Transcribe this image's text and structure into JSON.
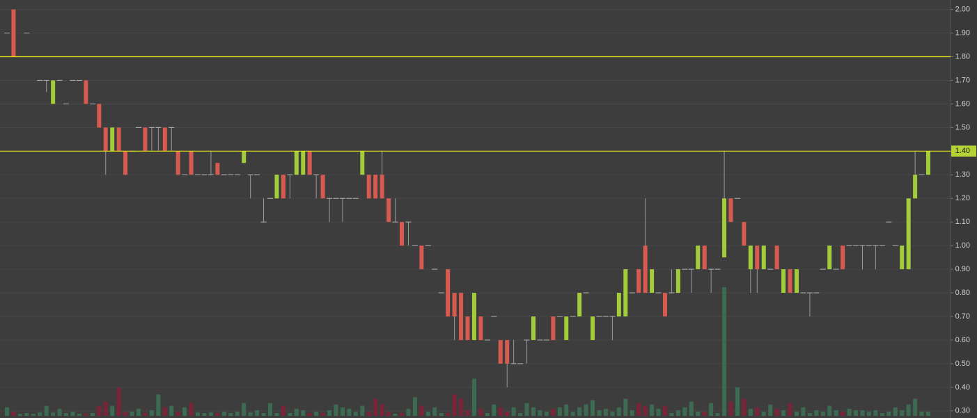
{
  "chart_data": {
    "type": "candlestick",
    "categories": [
      null,
      null,
      null,
      null,
      null,
      null,
      null,
      null,
      null,
      null,
      null,
      null,
      null,
      null,
      null,
      null,
      null,
      null,
      null,
      null,
      null,
      null,
      null,
      null,
      null,
      null,
      null,
      null,
      null,
      null,
      null,
      null,
      null,
      null,
      null,
      null,
      null,
      null,
      null,
      null,
      null,
      null,
      null,
      null,
      null,
      null,
      null,
      null,
      null,
      null,
      null,
      null,
      null,
      null,
      null,
      null,
      null,
      null,
      null,
      null,
      null,
      null,
      null,
      null,
      null,
      null,
      null,
      null,
      null,
      null,
      null,
      null,
      null,
      null,
      null,
      null,
      null,
      null,
      null,
      null,
      null,
      null,
      null,
      null,
      null,
      null,
      null,
      null,
      null,
      null,
      null,
      null,
      null,
      null,
      null,
      null,
      null,
      null,
      null,
      null,
      null,
      null,
      null,
      null,
      null,
      null,
      null,
      null,
      null,
      null,
      null,
      null,
      null,
      null,
      null,
      null,
      null,
      null,
      null,
      null,
      null,
      null,
      null,
      null,
      null,
      null,
      null,
      null,
      null,
      null,
      null,
      null,
      null,
      null,
      null,
      null,
      null,
      null,
      null,
      null,
      null
    ],
    "open": [
      1.9,
      2.0,
      1.8,
      1.9,
      1.8,
      1.7,
      1.7,
      1.6,
      1.7,
      1.6,
      1.7,
      1.7,
      1.7,
      1.6,
      1.6,
      1.5,
      1.4,
      1.5,
      1.4,
      1.4,
      1.5,
      1.5,
      1.5,
      1.5,
      1.5,
      1.5,
      1.4,
      1.3,
      1.4,
      1.3,
      1.3,
      1.3,
      1.35,
      1.3,
      1.3,
      1.3,
      1.35,
      1.3,
      1.3,
      1.1,
      1.2,
      1.2,
      1.3,
      1.3,
      1.3,
      1.3,
      1.4,
      1.3,
      1.3,
      1.2,
      1.2,
      1.2,
      1.2,
      1.2,
      1.3,
      1.3,
      1.3,
      1.3,
      1.2,
      1.1,
      1.1,
      1.1,
      1.0,
      1.0,
      1.0,
      0.9,
      0.8,
      0.9,
      0.8,
      0.8,
      0.7,
      0.6,
      0.7,
      0.6,
      0.7,
      0.6,
      0.6,
      0.5,
      0.5,
      0.6,
      0.6,
      0.6,
      0.6,
      0.7,
      0.7,
      0.6,
      0.7,
      0.7,
      0.8,
      0.6,
      0.7,
      0.7,
      0.7,
      0.7,
      0.7,
      0.8,
      0.9,
      1.0,
      0.8,
      0.8,
      0.8,
      0.8,
      0.8,
      0.9,
      0.9,
      0.9,
      1.0,
      0.9,
      0.9,
      0.95,
      1.2,
      1.2,
      1.1,
      0.9,
      1.0,
      0.9,
      0.9,
      1.0,
      0.8,
      0.9,
      0.8,
      0.8,
      0.8,
      0.8,
      0.9,
      0.9,
      0.9,
      1.0,
      1.0,
      1.0,
      1.0,
      1.0,
      1.0,
      1.0,
      1.1,
      1.0,
      0.9,
      0.9,
      1.2,
      1.3,
      1.3
    ],
    "high": [
      1.9,
      2.0,
      1.8,
      1.9,
      1.8,
      1.7,
      1.7,
      1.7,
      1.7,
      1.6,
      1.7,
      1.7,
      1.7,
      1.6,
      1.6,
      1.5,
      1.5,
      1.5,
      1.4,
      1.4,
      1.5,
      1.5,
      1.5,
      1.5,
      1.5,
      1.5,
      1.4,
      1.3,
      1.4,
      1.3,
      1.3,
      1.4,
      1.35,
      1.3,
      1.3,
      1.3,
      1.4,
      1.3,
      1.3,
      1.2,
      1.2,
      1.3,
      1.3,
      1.3,
      1.4,
      1.4,
      1.4,
      1.3,
      1.3,
      1.2,
      1.2,
      1.2,
      1.2,
      1.2,
      1.4,
      1.3,
      1.3,
      1.4,
      1.2,
      1.2,
      1.1,
      1.1,
      1.0,
      1.0,
      1.0,
      0.9,
      0.8,
      0.9,
      0.8,
      0.8,
      0.7,
      0.8,
      0.7,
      0.6,
      0.7,
      0.6,
      0.6,
      0.6,
      0.5,
      0.6,
      0.7,
      0.6,
      0.6,
      0.7,
      0.7,
      0.7,
      0.7,
      0.8,
      0.8,
      0.7,
      0.7,
      0.7,
      0.7,
      0.8,
      0.9,
      0.8,
      0.9,
      1.2,
      0.9,
      0.8,
      0.8,
      0.9,
      0.9,
      0.9,
      0.9,
      1.0,
      1.0,
      0.9,
      0.9,
      1.4,
      1.2,
      1.2,
      1.1,
      1.0,
      1.0,
      1.0,
      0.9,
      1.0,
      0.9,
      0.9,
      0.9,
      0.8,
      0.8,
      0.8,
      0.9,
      1.0,
      0.9,
      1.0,
      1.0,
      1.0,
      1.0,
      1.0,
      1.0,
      1.0,
      1.1,
      1.0,
      1.0,
      1.2,
      1.4,
      1.3,
      1.4
    ],
    "low": [
      1.9,
      1.8,
      1.8,
      1.9,
      1.8,
      1.7,
      1.65,
      1.6,
      1.7,
      1.6,
      1.7,
      1.7,
      1.6,
      1.6,
      1.5,
      1.3,
      1.4,
      1.4,
      1.3,
      1.4,
      1.5,
      1.4,
      1.4,
      1.4,
      1.4,
      1.4,
      1.3,
      1.3,
      1.3,
      1.3,
      1.3,
      1.3,
      1.3,
      1.3,
      1.3,
      1.3,
      1.35,
      1.2,
      1.3,
      1.1,
      1.2,
      1.2,
      1.2,
      1.2,
      1.3,
      1.3,
      1.3,
      1.2,
      1.2,
      1.1,
      1.2,
      1.1,
      1.2,
      1.2,
      1.3,
      1.2,
      1.2,
      1.2,
      1.1,
      1.1,
      1.0,
      1.0,
      1.0,
      0.9,
      1.0,
      0.9,
      0.8,
      0.7,
      0.6,
      0.6,
      0.6,
      0.6,
      0.6,
      0.6,
      0.7,
      0.5,
      0.4,
      0.5,
      0.5,
      0.5,
      0.6,
      0.6,
      0.6,
      0.6,
      0.7,
      0.6,
      0.7,
      0.7,
      0.8,
      0.6,
      0.7,
      0.7,
      0.6,
      0.7,
      0.7,
      0.8,
      0.8,
      0.8,
      0.8,
      0.8,
      0.7,
      0.8,
      0.8,
      0.9,
      0.8,
      0.9,
      0.9,
      0.8,
      0.9,
      0.95,
      1.1,
      1.2,
      1.0,
      0.8,
      0.8,
      0.9,
      0.9,
      0.9,
      0.8,
      0.8,
      0.8,
      0.8,
      0.7,
      0.8,
      0.9,
      0.9,
      0.9,
      0.9,
      1.0,
      1.0,
      0.9,
      1.0,
      0.9,
      1.0,
      1.1,
      1.0,
      0.9,
      0.9,
      1.2,
      1.3,
      1.3
    ],
    "close": [
      1.9,
      1.8,
      1.8,
      1.9,
      1.8,
      1.7,
      1.7,
      1.7,
      1.7,
      1.6,
      1.7,
      1.7,
      1.6,
      1.6,
      1.5,
      1.4,
      1.5,
      1.4,
      1.3,
      1.4,
      1.5,
      1.4,
      1.5,
      1.5,
      1.4,
      1.5,
      1.3,
      1.3,
      1.3,
      1.3,
      1.3,
      1.3,
      1.3,
      1.3,
      1.3,
      1.3,
      1.4,
      1.3,
      1.3,
      1.1,
      1.2,
      1.3,
      1.2,
      1.3,
      1.4,
      1.4,
      1.3,
      1.3,
      1.2,
      1.2,
      1.2,
      1.2,
      1.2,
      1.2,
      1.4,
      1.2,
      1.2,
      1.2,
      1.1,
      1.1,
      1.0,
      1.1,
      1.0,
      0.9,
      1.0,
      0.9,
      0.8,
      0.7,
      0.7,
      0.6,
      0.6,
      0.8,
      0.6,
      0.6,
      0.7,
      0.5,
      0.5,
      0.5,
      0.5,
      0.6,
      0.7,
      0.6,
      0.6,
      0.6,
      0.7,
      0.7,
      0.7,
      0.8,
      0.8,
      0.7,
      0.7,
      0.7,
      0.7,
      0.8,
      0.9,
      0.8,
      0.8,
      0.8,
      0.9,
      0.8,
      0.7,
      0.8,
      0.9,
      0.9,
      0.9,
      1.0,
      0.9,
      0.9,
      0.9,
      1.2,
      1.1,
      1.2,
      1.0,
      1.0,
      0.9,
      1.0,
      0.9,
      0.9,
      0.9,
      0.8,
      0.9,
      0.8,
      0.8,
      0.8,
      0.9,
      1.0,
      0.9,
      0.9,
      1.0,
      1.0,
      1.0,
      1.0,
      1.0,
      1.0,
      1.1,
      1.0,
      1.0,
      1.2,
      1.3,
      1.3,
      1.4
    ],
    "volume": [
      12,
      6,
      3,
      4,
      3,
      5,
      14,
      5,
      10,
      4,
      6,
      3,
      3,
      4,
      14,
      20,
      14,
      40,
      6,
      6,
      10,
      4,
      8,
      30,
      12,
      14,
      6,
      12,
      18,
      5,
      4,
      5,
      4,
      6,
      4,
      6,
      18,
      5,
      8,
      4,
      18,
      4,
      14,
      4,
      10,
      8,
      4,
      6,
      4,
      8,
      16,
      12,
      10,
      6,
      14,
      6,
      24,
      16,
      6,
      3,
      4,
      10,
      26,
      14,
      6,
      12,
      4,
      4,
      30,
      24,
      8,
      52,
      10,
      4,
      16,
      12,
      6,
      12,
      4,
      18,
      12,
      8,
      6,
      10,
      12,
      16,
      6,
      12,
      16,
      22,
      8,
      10,
      6,
      12,
      24,
      8,
      18,
      14,
      16,
      10,
      14,
      4,
      8,
      12,
      20,
      6,
      6,
      18,
      4,
      180,
      20,
      40,
      24,
      10,
      12,
      6,
      16,
      10,
      8,
      18,
      6,
      12,
      4,
      8,
      6,
      14,
      8,
      6,
      10,
      8,
      8,
      6,
      8,
      4,
      6,
      12,
      8,
      16,
      24,
      6,
      6
    ],
    "up_color": "#a2cc3a",
    "down_color": "#d65a4f",
    "doji_color": "#b8b8b8",
    "volume_up_color": "#3d6b52",
    "volume_down_color": "#7a2438",
    "ylim": [
      0.27,
      2.04
    ],
    "yticks": [
      {
        "value": 2.0,
        "label": "2.00"
      },
      {
        "value": 1.9,
        "label": "1.90"
      },
      {
        "value": 1.8,
        "label": "1.80"
      },
      {
        "value": 1.7,
        "label": "1.70"
      },
      {
        "value": 1.6,
        "label": "1.60"
      },
      {
        "value": 1.5,
        "label": "1.50"
      },
      {
        "value": 1.4,
        "label": "1.40"
      },
      {
        "value": 1.3,
        "label": "1.30"
      },
      {
        "value": 1.2,
        "label": "1.20"
      },
      {
        "value": 1.1,
        "label": "1.10"
      },
      {
        "value": 1.0,
        "label": "1.00"
      },
      {
        "value": 0.9,
        "label": "0.90"
      },
      {
        "value": 0.8,
        "label": "0.80"
      },
      {
        "value": 0.7,
        "label": "0.70"
      },
      {
        "value": 0.6,
        "label": "0.60"
      },
      {
        "value": 0.5,
        "label": "0.50"
      },
      {
        "value": 0.4,
        "label": "0.40"
      },
      {
        "value": 0.3,
        "label": "0.30"
      }
    ],
    "grid": true,
    "reference_lines": [
      {
        "value": 1.8,
        "color": "#e6e619"
      },
      {
        "value": 1.4,
        "color": "#e6e619",
        "label": "1.40",
        "label_color": "#b5d334"
      }
    ]
  }
}
